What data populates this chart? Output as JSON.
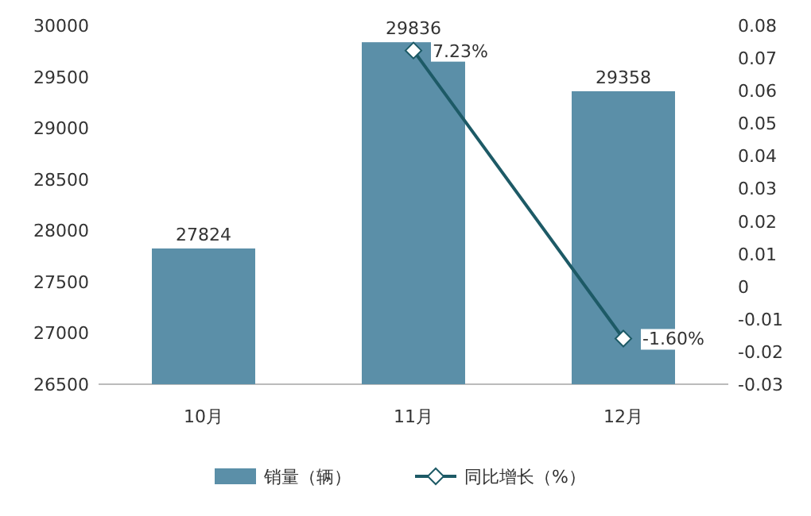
{
  "chart_data": {
    "type": "bar",
    "categories": [
      "10月",
      "11月",
      "12月"
    ],
    "series": [
      {
        "name": "销量（辆）",
        "color": "#5b8fa8",
        "values": [
          27824,
          29836,
          29358
        ]
      },
      {
        "name": "同比增长（%）",
        "type": "line",
        "axis": "y2",
        "color": "#1d5a66",
        "marker": "diamond",
        "values": [
          null,
          0.0723,
          -0.016
        ],
        "value_labels": [
          null,
          "7.23%",
          "-1.60%"
        ]
      }
    ],
    "ylim": [
      26500,
      30000
    ],
    "yticks": [
      26500,
      27000,
      27500,
      28000,
      28500,
      29000,
      29500,
      30000
    ],
    "y2lim": [
      -0.03,
      0.08
    ],
    "y2ticks": [
      -0.03,
      -0.02,
      -0.01,
      0,
      0.01,
      0.02,
      0.03,
      0.04,
      0.05,
      0.06,
      0.07,
      0.08
    ],
    "data_labels": true,
    "grid": false,
    "legend": "bottom"
  }
}
